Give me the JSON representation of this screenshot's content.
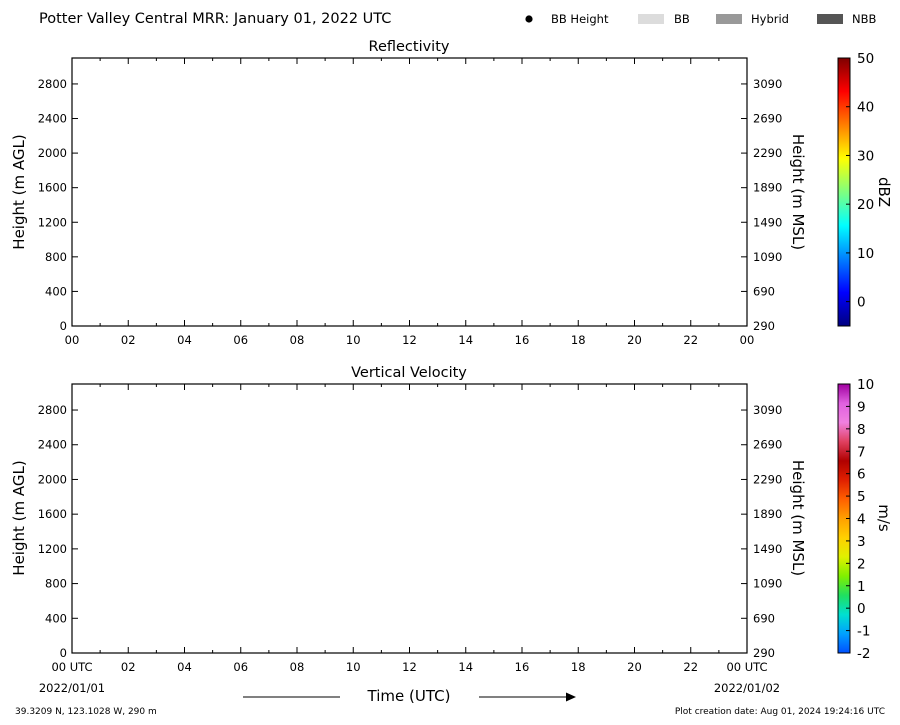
{
  "header": {
    "title": "Potter Valley Central MRR:  January 01, 2022 UTC",
    "legend": [
      {
        "label": "BB Height",
        "marker": "dot",
        "color": "#000000"
      },
      {
        "label": "BB",
        "marker": "patch",
        "color": "#dcdcdc"
      },
      {
        "label": "Hybrid",
        "marker": "patch",
        "color": "#999999"
      },
      {
        "label": "NBB",
        "marker": "patch",
        "color": "#555555"
      }
    ]
  },
  "footer": {
    "location": "39.3209 N, 123.1028 W, 290 m",
    "creation": "Plot creation date: Aug 01, 2024 19:24:16 UTC",
    "start_date": "2022/01/01",
    "end_date": "2022/01/02",
    "xlabel": "Time (UTC)"
  },
  "chart_data": [
    {
      "type": "heatmap",
      "title": "Reflectivity",
      "ylabel": "Height (m AGL)",
      "ylabel_right": "Height (m MSL)",
      "xlim": [
        0,
        24
      ],
      "x_tick_labels": [
        "00",
        "02",
        "04",
        "06",
        "08",
        "10",
        "12",
        "14",
        "16",
        "18",
        "20",
        "22",
        "00"
      ],
      "ylim": [
        0,
        3100
      ],
      "y_ticks": [
        0,
        400,
        800,
        1200,
        1600,
        2000,
        2400,
        2800
      ],
      "y_ticks_right": [
        290,
        690,
        1090,
        1490,
        1890,
        2290,
        2690,
        3090
      ],
      "colorbar": {
        "label": "dBZ",
        "range": [
          -5,
          50
        ],
        "ticks": [
          "0",
          "10",
          "20",
          "30",
          "40",
          "50"
        ],
        "colors": [
          "#00007f",
          "#0000ff",
          "#007fff",
          "#00ffff",
          "#7fff7f",
          "#ffff00",
          "#ff7f00",
          "#ff0000",
          "#7f0000"
        ]
      },
      "values": []
    },
    {
      "type": "heatmap",
      "title": "Vertical Velocity",
      "ylabel": "Height (m AGL)",
      "ylabel_right": "Height (m MSL)",
      "xlim": [
        0,
        24
      ],
      "x_tick_labels": [
        "00 UTC",
        "02",
        "04",
        "06",
        "08",
        "10",
        "12",
        "14",
        "16",
        "18",
        "20",
        "22",
        "00 UTC"
      ],
      "ylim": [
        0,
        3100
      ],
      "y_ticks": [
        0,
        400,
        800,
        1200,
        1600,
        2000,
        2400,
        2800
      ],
      "y_ticks_right": [
        290,
        690,
        1090,
        1490,
        1890,
        2290,
        2690,
        3090
      ],
      "colorbar": {
        "label": "m/s",
        "range": [
          -2,
          10
        ],
        "ticks": [
          "-2",
          "-1",
          "0",
          "1",
          "2",
          "3",
          "4",
          "5",
          "6",
          "7",
          "8",
          "9",
          "10"
        ],
        "colors": [
          "#0050ff",
          "#00a0ff",
          "#00e0d0",
          "#20e060",
          "#80f000",
          "#e0f000",
          "#ffd000",
          "#ffa000",
          "#ff6000",
          "#e02000",
          "#b00000",
          "#e04060",
          "#f080e0",
          "#e060e0",
          "#a000a0"
        ]
      },
      "values": []
    }
  ]
}
